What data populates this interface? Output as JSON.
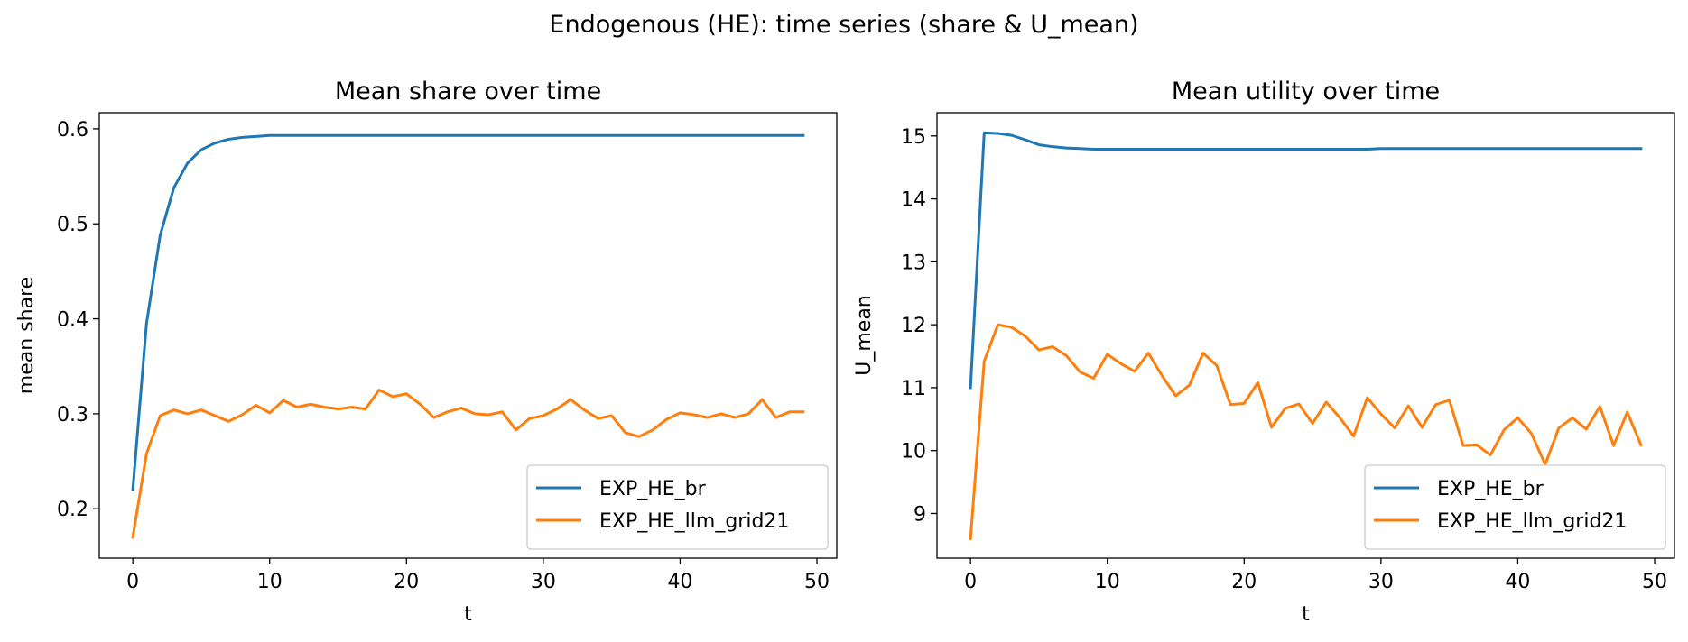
{
  "title": "Endogenous (HE): time series (share & U_mean)",
  "colors": {
    "EXP_HE_br": "#1f77b4",
    "EXP_HE_llm_grid21": "#ff7f0e"
  },
  "chart_data": [
    {
      "type": "line",
      "title": "Mean share over time",
      "xlabel": "t",
      "ylabel": "mean share",
      "xlim": [
        -2.45,
        51.45
      ],
      "ylim": [
        0.148,
        0.617
      ],
      "xticks": [
        0,
        10,
        20,
        30,
        40,
        50
      ],
      "xtick_labels": [
        "0",
        "10",
        "20",
        "30",
        "40",
        "50"
      ],
      "yticks": [
        0.2,
        0.3,
        0.4,
        0.5,
        0.6
      ],
      "ytick_labels": [
        "0.2",
        "0.3",
        "0.4",
        "0.5",
        "0.6"
      ],
      "grid": false,
      "legend": "lower right",
      "x": [
        0,
        1,
        2,
        3,
        4,
        5,
        6,
        7,
        8,
        9,
        10,
        11,
        12,
        13,
        14,
        15,
        16,
        17,
        18,
        19,
        20,
        21,
        22,
        23,
        24,
        25,
        26,
        27,
        28,
        29,
        30,
        31,
        32,
        33,
        34,
        35,
        36,
        37,
        38,
        39,
        40,
        41,
        42,
        43,
        44,
        45,
        46,
        47,
        48,
        49
      ],
      "series": [
        {
          "name": "EXP_HE_br",
          "color": "#1f77b4",
          "values": [
            0.22,
            0.395,
            0.488,
            0.538,
            0.564,
            0.578,
            0.585,
            0.589,
            0.591,
            0.592,
            0.593,
            0.593,
            0.593,
            0.593,
            0.593,
            0.593,
            0.593,
            0.593,
            0.593,
            0.593,
            0.593,
            0.593,
            0.593,
            0.593,
            0.593,
            0.593,
            0.593,
            0.593,
            0.593,
            0.593,
            0.593,
            0.593,
            0.593,
            0.593,
            0.593,
            0.593,
            0.593,
            0.593,
            0.593,
            0.593,
            0.593,
            0.593,
            0.593,
            0.593,
            0.593,
            0.593,
            0.593,
            0.593,
            0.593,
            0.593
          ]
        },
        {
          "name": "EXP_HE_llm_grid21",
          "color": "#ff7f0e",
          "values": [
            0.17,
            0.258,
            0.298,
            0.304,
            0.3,
            0.304,
            0.298,
            0.292,
            0.299,
            0.309,
            0.301,
            0.314,
            0.307,
            0.31,
            0.307,
            0.305,
            0.307,
            0.305,
            0.325,
            0.318,
            0.321,
            0.31,
            0.296,
            0.302,
            0.306,
            0.3,
            0.299,
            0.302,
            0.283,
            0.295,
            0.298,
            0.305,
            0.315,
            0.304,
            0.295,
            0.298,
            0.28,
            0.276,
            0.283,
            0.294,
            0.301,
            0.299,
            0.296,
            0.3,
            0.296,
            0.3,
            0.315,
            0.296,
            0.302,
            0.302
          ]
        }
      ]
    },
    {
      "type": "line",
      "title": "Mean utility over time",
      "xlabel": "t",
      "ylabel": "U_mean",
      "xlim": [
        -2.45,
        51.45
      ],
      "ylim": [
        8.29,
        15.37
      ],
      "xticks": [
        0,
        10,
        20,
        30,
        40,
        50
      ],
      "xtick_labels": [
        "0",
        "10",
        "20",
        "30",
        "40",
        "50"
      ],
      "yticks": [
        9,
        10,
        11,
        12,
        13,
        14,
        15
      ],
      "ytick_labels": [
        "9",
        "10",
        "11",
        "12",
        "13",
        "14",
        "15"
      ],
      "grid": false,
      "legend": "lower right",
      "x": [
        0,
        1,
        2,
        3,
        4,
        5,
        6,
        7,
        8,
        9,
        10,
        11,
        12,
        13,
        14,
        15,
        16,
        17,
        18,
        19,
        20,
        21,
        22,
        23,
        24,
        25,
        26,
        27,
        28,
        29,
        30,
        31,
        32,
        33,
        34,
        35,
        36,
        37,
        38,
        39,
        40,
        41,
        42,
        43,
        44,
        45,
        46,
        47,
        48,
        49
      ],
      "series": [
        {
          "name": "EXP_HE_br",
          "color": "#1f77b4",
          "values": [
            11.0,
            15.05,
            15.04,
            15.01,
            14.94,
            14.86,
            14.83,
            14.81,
            14.8,
            14.79,
            14.79,
            14.79,
            14.79,
            14.79,
            14.79,
            14.79,
            14.79,
            14.79,
            14.79,
            14.79,
            14.79,
            14.79,
            14.79,
            14.79,
            14.79,
            14.79,
            14.79,
            14.79,
            14.79,
            14.79,
            14.8,
            14.8,
            14.8,
            14.8,
            14.8,
            14.8,
            14.8,
            14.8,
            14.8,
            14.8,
            14.8,
            14.8,
            14.8,
            14.8,
            14.8,
            14.8,
            14.8,
            14.8,
            14.8,
            14.8
          ]
        },
        {
          "name": "EXP_HE_llm_grid21",
          "color": "#ff7f0e",
          "values": [
            8.6,
            11.42,
            12.0,
            11.96,
            11.82,
            11.6,
            11.65,
            11.51,
            11.25,
            11.15,
            11.53,
            11.38,
            11.26,
            11.55,
            11.19,
            10.87,
            11.04,
            11.55,
            11.35,
            10.73,
            10.75,
            11.08,
            10.37,
            10.67,
            10.74,
            10.43,
            10.77,
            10.52,
            10.23,
            10.84,
            10.58,
            10.36,
            10.71,
            10.37,
            10.73,
            10.8,
            10.08,
            10.09,
            9.93,
            10.33,
            10.52,
            10.27,
            9.78,
            10.36,
            10.52,
            10.34,
            10.7,
            10.08,
            10.61,
            10.09
          ]
        }
      ]
    }
  ]
}
